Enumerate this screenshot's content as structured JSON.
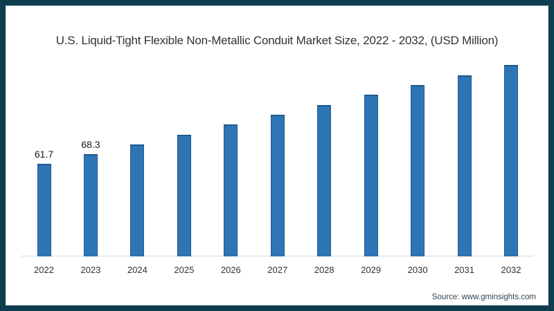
{
  "frame": {
    "border_color": "#0f3d50",
    "keyline_color": "#d8dde1",
    "background": "#ffffff"
  },
  "title": "U.S. Liquid-Tight Flexible Non-Metallic Conduit Market Size, 2022 - 2032, (USD Million)",
  "source": "Source: www.gminsights.com",
  "chart_data": {
    "type": "bar",
    "title": "U.S. Liquid-Tight Flexible Non-Metallic Conduit Market Size, 2022 - 2032, (USD Million)",
    "categories": [
      "2022",
      "2023",
      "2024",
      "2025",
      "2026",
      "2027",
      "2028",
      "2029",
      "2030",
      "2031",
      "2032"
    ],
    "values": [
      61.7,
      68.3,
      74.9,
      81.4,
      88.0,
      94.6,
      101.2,
      107.8,
      114.4,
      121.0,
      127.6
    ],
    "data_labels": [
      "61.7",
      "68.3",
      "",
      "",
      "",
      "",
      "",
      "",
      "",
      "",
      ""
    ],
    "xlabel": "",
    "ylabel": "",
    "ylim": [
      0,
      140
    ],
    "grid": false,
    "legend": false,
    "bar_color": "#2e75b5",
    "bar_border_color": "#1d5a8f",
    "axis_line_color": "#d9d9d9",
    "tick_color": "#333333",
    "data_label_color": "#1a1a1a"
  }
}
